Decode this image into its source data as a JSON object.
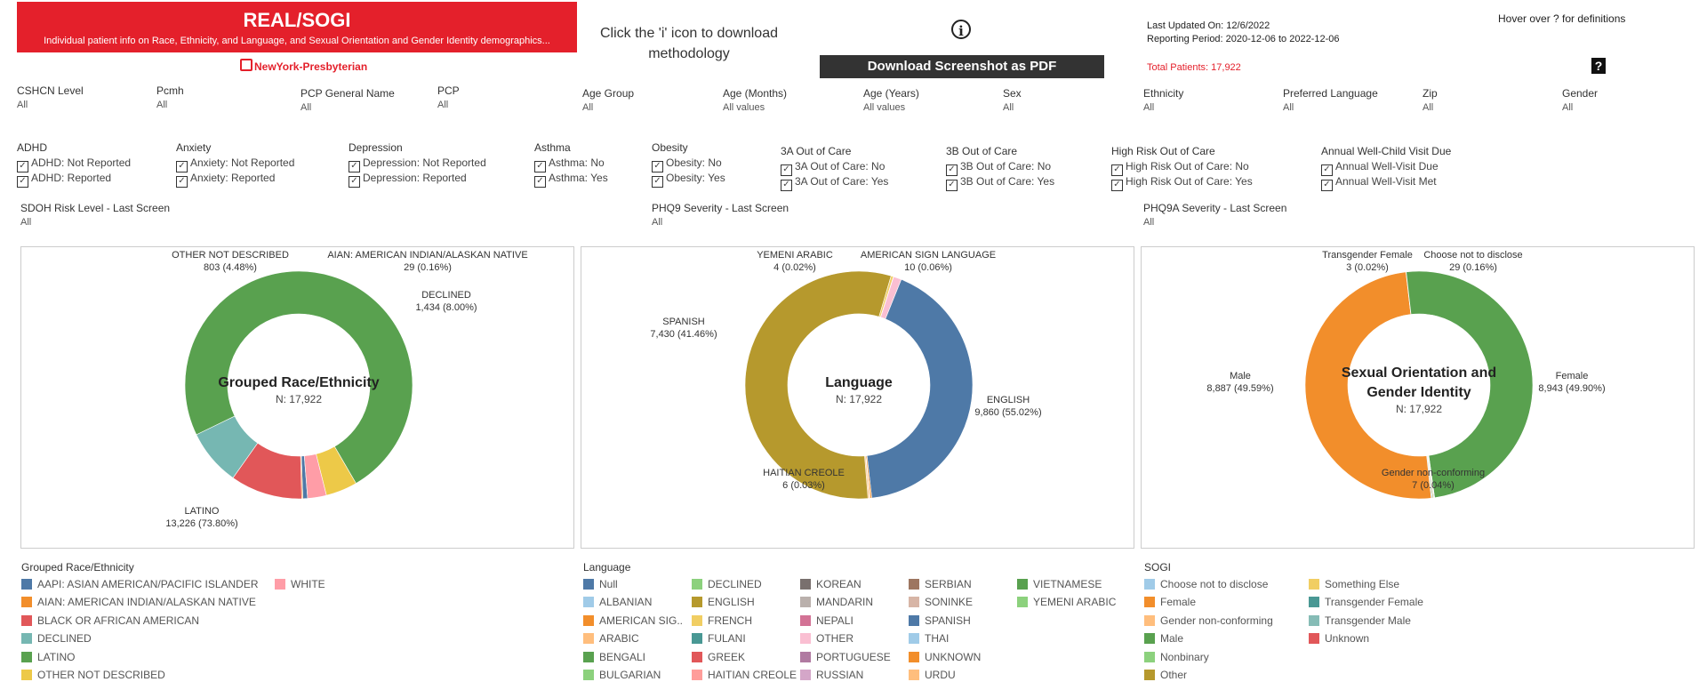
{
  "header": {
    "title": "REAL/SOGI",
    "subtitle": "Individual patient info on Race, Ethnicity, and Language, and Sexual Orientation and Gender Identity demographics...",
    "logo_text": "NewYork-Presbyterian",
    "click_info": "Click the 'i' icon to download methodology",
    "info_icon_glyph": "i",
    "pdf_button": "Download Screenshot as PDF",
    "last_updated": "Last Updated On: 12/6/2022",
    "reporting_period": "Reporting Period: 2020-12-06 to 2022-12-06",
    "total_patients": "Total Patients: 17,922",
    "hover_definitions": "Hover over ? for definitions",
    "help_glyph": "?"
  },
  "filters": [
    {
      "label": "CSHCN Level",
      "value": "All"
    },
    {
      "label": "Pcmh",
      "value": "All"
    },
    {
      "label": "PCP General Name",
      "value": "All"
    },
    {
      "label": "PCP",
      "value": "All"
    },
    {
      "label": "Age Group",
      "value": "All"
    },
    {
      "label": "Age (Months)",
      "value": "All values"
    },
    {
      "label": "Age (Years)",
      "value": "All values"
    },
    {
      "label": "Sex",
      "value": "All"
    },
    {
      "label": "Ethnicity",
      "value": "All"
    },
    {
      "label": "Preferred Language",
      "value": "All"
    },
    {
      "label": "Zip",
      "value": "All"
    },
    {
      "label": "Gender",
      "value": "All"
    }
  ],
  "checkbox_groups": [
    {
      "label": "ADHD",
      "options": [
        "ADHD: Not Reported",
        "ADHD: Reported"
      ]
    },
    {
      "label": "Anxiety",
      "options": [
        "Anxiety: Not Reported",
        "Anxiety: Reported"
      ]
    },
    {
      "label": "Depression",
      "options": [
        "Depression: Not Reported",
        "Depression: Reported"
      ]
    },
    {
      "label": "Asthma",
      "options": [
        "Asthma: No",
        "Asthma: Yes"
      ]
    },
    {
      "label": "Obesity",
      "options": [
        "Obesity: No",
        "Obesity: Yes"
      ]
    },
    {
      "label": "3A Out of Care",
      "options": [
        "3A Out of Care: No",
        "3A Out of Care: Yes"
      ]
    },
    {
      "label": "3B Out of Care",
      "options": [
        "3B Out of Care: No",
        "3B Out of Care: Yes"
      ]
    },
    {
      "label": "High Risk Out of Care",
      "options": [
        "High Risk Out of Care: No",
        "High Risk Out of Care: Yes"
      ]
    },
    {
      "label": "Annual Well-Child Visit Due",
      "options": [
        "Annual Well-Visit Due",
        "Annual Well-Visit Met"
      ]
    }
  ],
  "check_glyph": "✓",
  "filters2": [
    {
      "label": "SDOH Risk Level - Last Screen",
      "value": "All"
    },
    {
      "label": "PHQ9 Severity - Last Screen",
      "value": "All"
    },
    {
      "label": "PHQ9A Severity - Last Screen",
      "value": "All"
    }
  ],
  "chart_data": [
    {
      "type": "pie",
      "center_title": [
        "Grouped Race/Ethnicity"
      ],
      "center_sub": "N: 17,922",
      "slices": [
        {
          "name": "AAPI: ASIAN AMERICAN/PACIFIC ISLANDER",
          "value": 120,
          "color": "#4e79a7"
        },
        {
          "name": "AIAN: AMERICAN INDIAN/ALASKAN NATIVE",
          "value": 29,
          "color": "#f28e2b"
        },
        {
          "name": "BLACK OR AFRICAN AMERICAN",
          "value": 1832,
          "color": "#e15759"
        },
        {
          "name": "DECLINED",
          "value": 1434,
          "color": "#76b7b2"
        },
        {
          "name": "LATINO",
          "value": 13226,
          "color": "#59a14f"
        },
        {
          "name": "OTHER NOT DESCRIBED",
          "value": 803,
          "color": "#edc948"
        },
        {
          "name": "WHITE",
          "value": 478,
          "color": "#ff9da7"
        }
      ],
      "labels": [
        {
          "name": "OTHER NOT DESCRIBED",
          "value": "803 (4.48%)"
        },
        {
          "name": "AIAN: AMERICAN INDIAN/ALASKAN NATIVE",
          "value": "29 (0.16%)"
        },
        {
          "name": "DECLINED",
          "value": "1,434 (8.00%)"
        },
        {
          "name": "LATINO",
          "value": "13,226 (73.80%)"
        }
      ],
      "legend_title": "Grouped Race/Ethnicity",
      "legend": [
        {
          "name": "AAPI: ASIAN AMERICAN/PACIFIC ISLANDER",
          "color": "#4e79a7"
        },
        {
          "name": "AIAN: AMERICAN INDIAN/ALASKAN NATIVE",
          "color": "#f28e2b"
        },
        {
          "name": "BLACK OR AFRICAN AMERICAN",
          "color": "#e15759"
        },
        {
          "name": "DECLINED",
          "color": "#76b7b2"
        },
        {
          "name": "LATINO",
          "color": "#59a14f"
        },
        {
          "name": "OTHER NOT DESCRIBED",
          "color": "#edc948"
        },
        {
          "name": "WHITE",
          "color": "#ff9da7"
        }
      ]
    },
    {
      "type": "pie",
      "center_title": [
        "Language"
      ],
      "center_sub": "N: 17,922",
      "slices": [
        {
          "name": "AMERICAN SIGN LANGUAGE",
          "value": 10,
          "color": "#f28e2b"
        },
        {
          "name": "ARABIC",
          "value": 40,
          "color": "#ffbe7d"
        },
        {
          "name": "ENGLISH",
          "value": 9860,
          "color": "#b6992d"
        },
        {
          "name": "FRENCH",
          "value": 60,
          "color": "#f1ce63"
        },
        {
          "name": "HAITIAN CREOLE",
          "value": 6,
          "color": "#ff9d9a"
        },
        {
          "name": "OTHER",
          "value": 200,
          "color": "#fabfd2"
        },
        {
          "name": "SPANISH",
          "value": 7430,
          "color": "#4e79a7"
        },
        {
          "name": "UNKNOWN",
          "value": 40,
          "color": "#f28e2b"
        },
        {
          "name": "YEMENI ARABIC",
          "value": 4,
          "color": "#8cd17d"
        }
      ],
      "labels": [
        {
          "name": "YEMENI ARABIC",
          "value": "4 (0.02%)"
        },
        {
          "name": "AMERICAN SIGN LANGUAGE",
          "value": "10 (0.06%)"
        },
        {
          "name": "SPANISH",
          "value": "7,430 (41.46%)"
        },
        {
          "name": "ENGLISH",
          "value": "9,860 (55.02%)"
        },
        {
          "name": "HAITIAN CREOLE",
          "value": "6 (0.03%)"
        }
      ],
      "legend_title": "Language",
      "legend": [
        {
          "name": "Null",
          "color": "#4e79a7"
        },
        {
          "name": "ALBANIAN",
          "color": "#a0cbe8"
        },
        {
          "name": "AMERICAN SIG..",
          "color": "#f28e2b"
        },
        {
          "name": "ARABIC",
          "color": "#ffbe7d"
        },
        {
          "name": "BENGALI",
          "color": "#59a14f"
        },
        {
          "name": "BULGARIAN",
          "color": "#8cd17d"
        },
        {
          "name": "DECLINED",
          "color": "#8cd17d"
        },
        {
          "name": "ENGLISH",
          "color": "#b6992d"
        },
        {
          "name": "FRENCH",
          "color": "#f1ce63"
        },
        {
          "name": "FULANI",
          "color": "#499894"
        },
        {
          "name": "GREEK",
          "color": "#e15759"
        },
        {
          "name": "HAITIAN CREOLE",
          "color": "#ff9d9a"
        },
        {
          "name": "KOREAN",
          "color": "#79706e"
        },
        {
          "name": "MANDARIN",
          "color": "#bab0ac"
        },
        {
          "name": "NEPALI",
          "color": "#d37295"
        },
        {
          "name": "OTHER",
          "color": "#fabfd2"
        },
        {
          "name": "PORTUGUESE",
          "color": "#b07aa1"
        },
        {
          "name": "RUSSIAN",
          "color": "#d4a6c8"
        },
        {
          "name": "SERBIAN",
          "color": "#9d7660"
        },
        {
          "name": "SONINKE",
          "color": "#d7b5a6"
        },
        {
          "name": "SPANISH",
          "color": "#4e79a7"
        },
        {
          "name": "THAI",
          "color": "#a0cbe8"
        },
        {
          "name": "UNKNOWN",
          "color": "#f28e2b"
        },
        {
          "name": "URDU",
          "color": "#ffbe7d"
        },
        {
          "name": "VIETNAMESE",
          "color": "#59a14f"
        },
        {
          "name": "YEMENI ARABIC",
          "color": "#8cd17d"
        }
      ]
    },
    {
      "type": "pie",
      "center_title": [
        "Sexual Orientation and",
        "Gender Identity"
      ],
      "center_sub": "N: 17,922",
      "slices": [
        {
          "name": "Choose not to disclose",
          "value": 29,
          "color": "#a0cbe8"
        },
        {
          "name": "Female",
          "value": 8943,
          "color": "#f28e2b"
        },
        {
          "name": "Gender non-conforming",
          "value": 7,
          "color": "#ffbe7d"
        },
        {
          "name": "Male",
          "value": 8887,
          "color": "#59a14f"
        },
        {
          "name": "Nonbinary",
          "value": 10,
          "color": "#8cd17d"
        },
        {
          "name": "Transgender Female",
          "value": 3,
          "color": "#499894"
        },
        {
          "name": "Transgender Male",
          "value": 20,
          "color": "#86bcb6"
        },
        {
          "name": "Other",
          "value": 23,
          "color": "#b6992d"
        }
      ],
      "labels": [
        {
          "name": "Transgender Female",
          "value": "3 (0.02%)"
        },
        {
          "name": "Choose not to disclose",
          "value": "29 (0.16%)"
        },
        {
          "name": "Male",
          "value": "8,887 (49.59%)"
        },
        {
          "name": "Female",
          "value": "8,943 (49.90%)"
        },
        {
          "name": "Gender non-conforming",
          "value": "7 (0.04%)"
        }
      ],
      "legend_title": "SOGI",
      "legend": [
        {
          "name": "Choose not to disclose",
          "color": "#a0cbe8"
        },
        {
          "name": "Female",
          "color": "#f28e2b"
        },
        {
          "name": "Gender non-conforming",
          "color": "#ffbe7d"
        },
        {
          "name": "Male",
          "color": "#59a14f"
        },
        {
          "name": "Nonbinary",
          "color": "#8cd17d"
        },
        {
          "name": "Other",
          "color": "#b6992d"
        },
        {
          "name": "Something Else",
          "color": "#f1ce63"
        },
        {
          "name": "Transgender Female",
          "color": "#499894"
        },
        {
          "name": "Transgender Male",
          "color": "#86bcb6"
        },
        {
          "name": "Unknown",
          "color": "#e15759"
        }
      ]
    }
  ]
}
